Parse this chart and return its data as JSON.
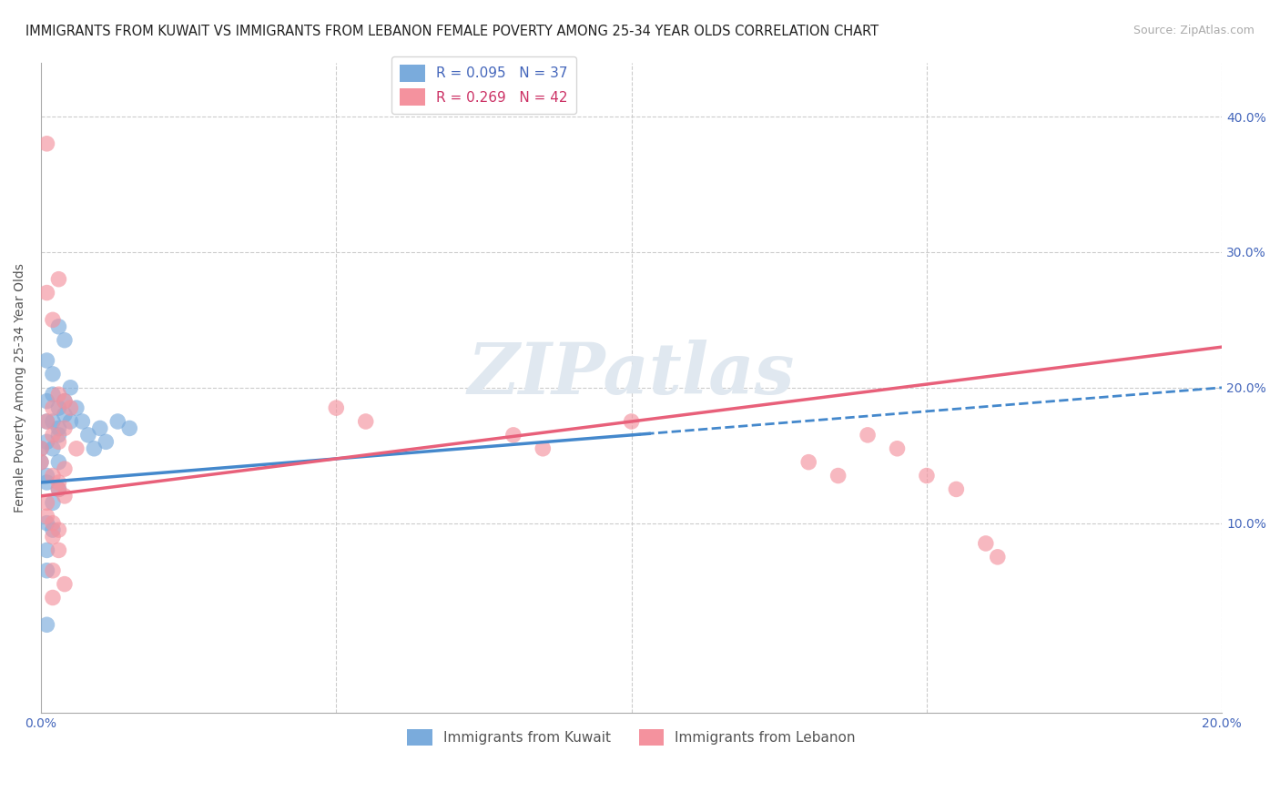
{
  "title": "IMMIGRANTS FROM KUWAIT VS IMMIGRANTS FROM LEBANON FEMALE POVERTY AMONG 25-34 YEAR OLDS CORRELATION CHART",
  "source": "Source: ZipAtlas.com",
  "xlabel": "",
  "ylabel": "Female Poverty Among 25-34 Year Olds",
  "xlim": [
    0.0,
    0.2
  ],
  "ylim": [
    -0.04,
    0.44
  ],
  "yticks": [
    0.0,
    0.1,
    0.2,
    0.3,
    0.4
  ],
  "xticks": [
    0.0,
    0.05,
    0.1,
    0.15,
    0.2
  ],
  "xtick_labels_left": [
    "0.0%",
    "",
    "",
    "",
    ""
  ],
  "xtick_labels_right": [
    "20.0%"
  ],
  "ytick_labels_right": [
    "10.0%",
    "20.0%",
    "30.0%",
    "40.0%"
  ],
  "kuwait_color": "#7AABDC",
  "lebanon_color": "#F4929E",
  "kuwait_line_color": "#4488CC",
  "lebanon_line_color": "#E8607A",
  "kuwait_R": 0.095,
  "kuwait_N": 37,
  "lebanon_R": 0.269,
  "lebanon_N": 42,
  "kuwait_x": [
    0.0,
    0.0,
    0.001,
    0.001,
    0.001,
    0.001,
    0.001,
    0.001,
    0.001,
    0.002,
    0.002,
    0.002,
    0.002,
    0.002,
    0.002,
    0.003,
    0.003,
    0.003,
    0.003,
    0.003,
    0.003,
    0.004,
    0.004,
    0.004,
    0.005,
    0.005,
    0.006,
    0.007,
    0.008,
    0.009,
    0.01,
    0.011,
    0.013,
    0.015,
    0.001,
    0.001,
    0.001
  ],
  "kuwait_y": [
    0.155,
    0.145,
    0.22,
    0.19,
    0.175,
    0.16,
    0.135,
    0.1,
    0.065,
    0.21,
    0.195,
    0.175,
    0.155,
    0.115,
    0.095,
    0.245,
    0.185,
    0.17,
    0.165,
    0.145,
    0.125,
    0.235,
    0.19,
    0.18,
    0.2,
    0.175,
    0.185,
    0.175,
    0.165,
    0.155,
    0.17,
    0.16,
    0.175,
    0.17,
    0.13,
    0.08,
    0.025
  ],
  "lebanon_x": [
    0.0,
    0.0,
    0.001,
    0.001,
    0.001,
    0.001,
    0.002,
    0.002,
    0.002,
    0.002,
    0.002,
    0.002,
    0.003,
    0.003,
    0.003,
    0.003,
    0.003,
    0.004,
    0.004,
    0.004,
    0.004,
    0.005,
    0.006,
    0.05,
    0.055,
    0.08,
    0.085,
    0.1,
    0.13,
    0.135,
    0.14,
    0.145,
    0.15,
    0.155,
    0.16,
    0.162,
    0.001,
    0.002,
    0.003,
    0.004,
    0.002,
    0.003
  ],
  "lebanon_y": [
    0.155,
    0.145,
    0.38,
    0.27,
    0.175,
    0.105,
    0.25,
    0.185,
    0.165,
    0.135,
    0.1,
    0.065,
    0.28,
    0.195,
    0.16,
    0.125,
    0.08,
    0.19,
    0.17,
    0.14,
    0.055,
    0.185,
    0.155,
    0.185,
    0.175,
    0.165,
    0.155,
    0.175,
    0.145,
    0.135,
    0.165,
    0.155,
    0.135,
    0.125,
    0.085,
    0.075,
    0.115,
    0.09,
    0.13,
    0.12,
    0.045,
    0.095
  ],
  "watermark": "ZIPatlas",
  "background_color": "#ffffff",
  "grid_color": "#cccccc",
  "title_fontsize": 10.5,
  "axis_label_fontsize": 10,
  "tick_fontsize": 10,
  "legend_fontsize": 11
}
